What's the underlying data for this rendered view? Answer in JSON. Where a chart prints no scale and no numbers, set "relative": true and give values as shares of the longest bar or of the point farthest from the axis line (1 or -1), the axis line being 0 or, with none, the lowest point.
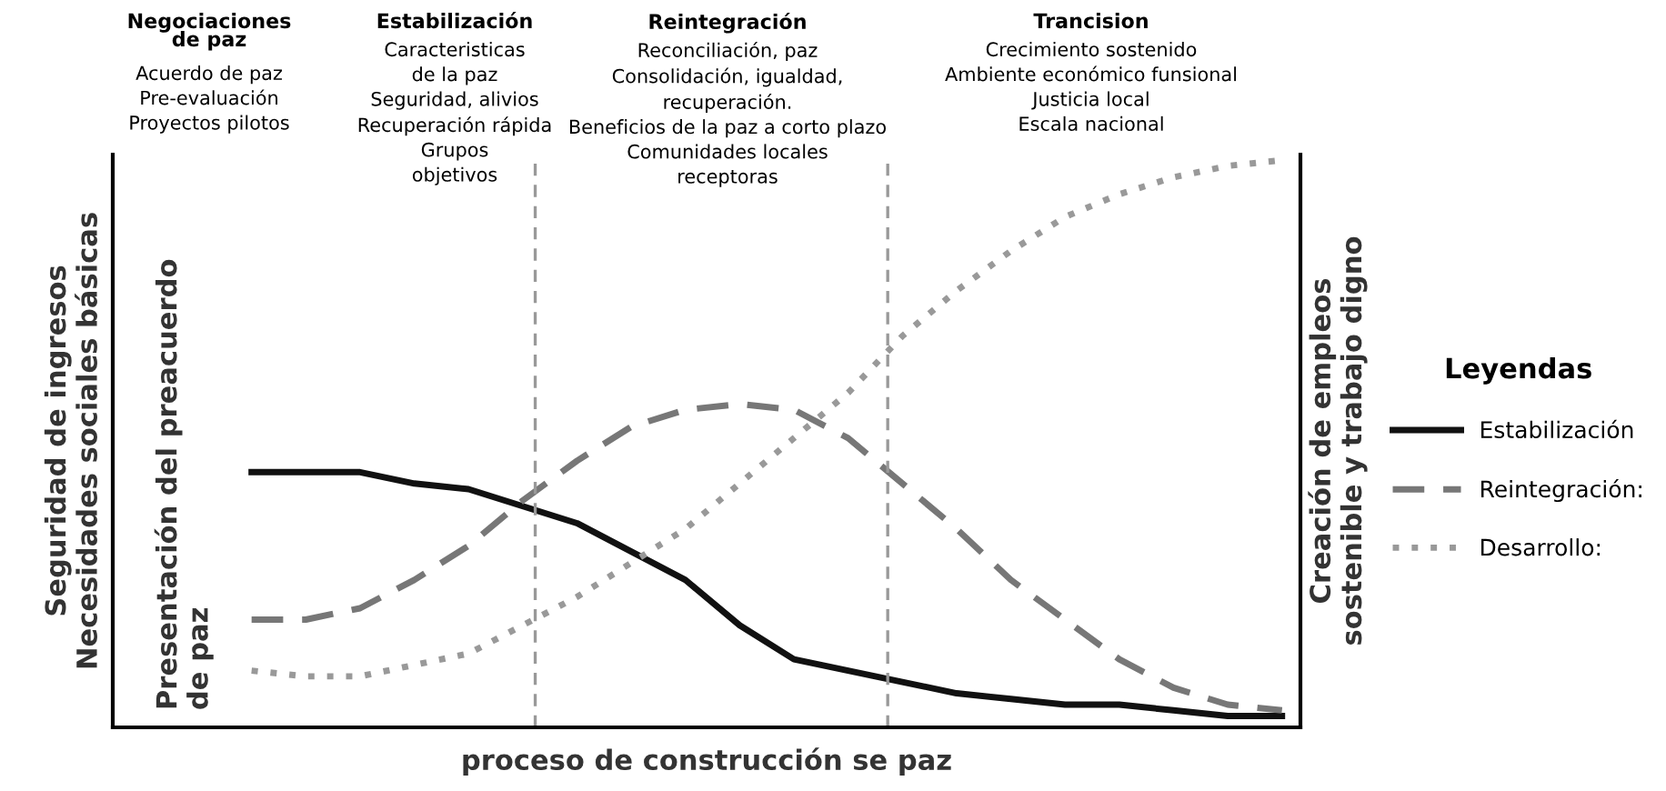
{
  "chart_data": {
    "type": "line",
    "relative": true,
    "xlabel": "proceso de construcción se paz",
    "ylabel": "Seguridad de ingresos\nNecesidades sociales básicas",
    "y2label": "Creación de empleos\nsostenible y trabajo digno",
    "legend_title": "Leyendas",
    "legend": "right",
    "grid": false,
    "tick_labels": false,
    "categories": [
      null,
      null,
      null,
      null,
      null,
      null,
      null,
      null,
      null,
      null,
      null,
      null,
      null,
      null,
      null,
      null,
      null,
      null,
      null,
      null
    ],
    "series": [
      {
        "name": "Estabilización",
        "color": "#111111",
        "line_style": "solid",
        "values": [
          0.45,
          0.45,
          0.45,
          0.43,
          0.42,
          0.39,
          0.36,
          0.31,
          0.26,
          0.18,
          0.12,
          0.1,
          0.08,
          0.06,
          0.05,
          0.04,
          0.04,
          0.03,
          0.02,
          0.02
        ]
      },
      {
        "name": "Reintegración:",
        "color": "#777777",
        "line_style": "dashed",
        "values": [
          0.19,
          0.19,
          0.21,
          0.26,
          0.32,
          0.4,
          0.47,
          0.53,
          0.56,
          0.57,
          0.56,
          0.51,
          0.43,
          0.35,
          0.26,
          0.19,
          0.12,
          0.07,
          0.04,
          0.03
        ]
      },
      {
        "name": "Desarrollo:",
        "color": "#999999",
        "line_style": "dotted",
        "values": [
          0.1,
          0.09,
          0.09,
          0.11,
          0.13,
          0.18,
          0.23,
          0.29,
          0.35,
          0.43,
          0.51,
          0.59,
          0.69,
          0.77,
          0.84,
          0.9,
          0.94,
          0.97,
          0.99,
          1
        ]
      }
    ],
    "annotations": [
      "Negociaciones\nde paz\nAcuerdo de paz\nPre-evaluación\nProyectos pilotos",
      "Estabilización\nCaracteristicas\nde la paz\nSeguridad, alivios\nRecuperación rápida\nGrupos\nobjetivos",
      "Reintegración\nReconciliación, paz\nConsolidación, igualdad,\nrecuperación.\nBeneficios de la paz a corto plazo\nComunidades locales\nreceptoras",
      "Trancision\nCrecimiento sostenido\nAmbiente económico funsional\nJusticia local\nEscala nacional",
      "Presentación del preacuerdo\nde paz"
    ]
  }
}
